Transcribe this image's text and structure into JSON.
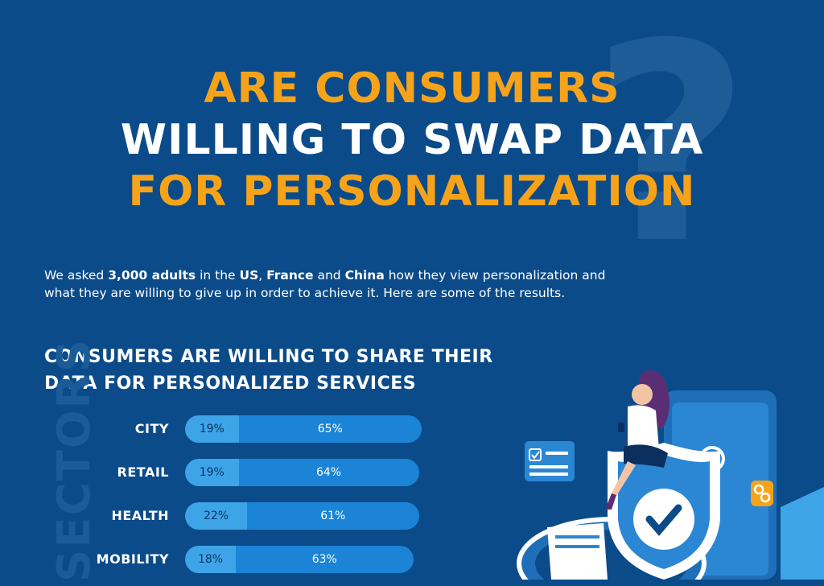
{
  "title": {
    "line1": "ARE CONSUMERS",
    "line2": "WILLING TO SWAP DATA",
    "line3": "FOR PERSONALIZATION",
    "background_mark": "?"
  },
  "intro": {
    "p1": "We asked ",
    "b1": "3,000 adults",
    "p2": " in the ",
    "b2": "US",
    "p3": ", ",
    "b3": "France",
    "p4": " and ",
    "b4": "China",
    "p5": " how they view personalization and what they are willing to give up in order to achieve it. Here are some of the results."
  },
  "section": {
    "heading_line1": "CONSUMERS ARE WILLING TO SHARE THEIR",
    "heading_line2": "DATA FOR PERSONALIZED SERVICES",
    "vertical_label": "SECTORS"
  },
  "colors": {
    "background": "#0b4b89",
    "accent_orange": "#f7a31a",
    "bar_light": "#3ea4e8",
    "bar_dark": "#1b84d6"
  },
  "chart_data": {
    "type": "bar",
    "categories": [
      "CITY",
      "RETAIL",
      "HEALTH",
      "MOBILITY"
    ],
    "series": [
      {
        "values": [
          19,
          19,
          22,
          18
        ]
      },
      {
        "values": [
          65,
          64,
          61,
          63
        ]
      }
    ],
    "labels": [
      [
        "19%",
        "65%"
      ],
      [
        "19%",
        "64%"
      ],
      [
        "22%",
        "61%"
      ],
      [
        "18%",
        "63%"
      ]
    ]
  }
}
